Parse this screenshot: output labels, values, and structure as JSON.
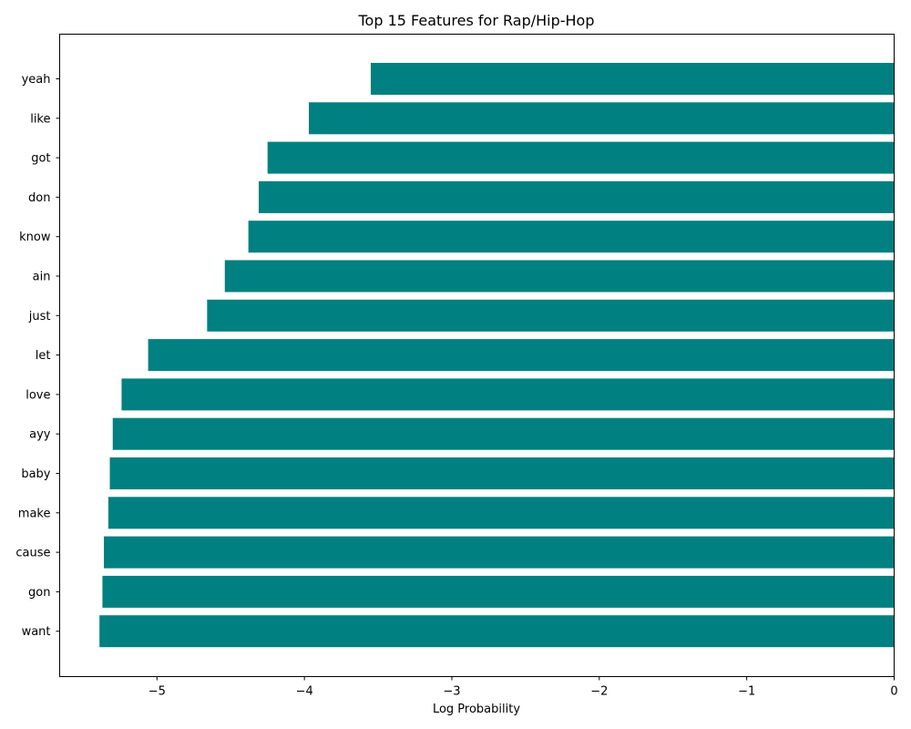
{
  "chart_data": {
    "type": "bar",
    "orientation": "horizontal",
    "title": "Top 15 Features for Rap/Hip-Hop",
    "xlabel": "Log Probability",
    "ylabel": "",
    "categories": [
      "yeah",
      "like",
      "got",
      "don",
      "know",
      "ain",
      "just",
      "let",
      "love",
      "ayy",
      "baby",
      "make",
      "cause",
      "gon",
      "want"
    ],
    "values": [
      -3.55,
      -3.97,
      -4.25,
      -4.31,
      -4.38,
      -4.54,
      -4.66,
      -5.06,
      -5.24,
      -5.3,
      -5.32,
      -5.33,
      -5.36,
      -5.37,
      -5.39
    ],
    "xlim": [
      -5.66,
      0
    ],
    "xticks": [
      -5,
      -4,
      -3,
      -2,
      -1,
      0
    ],
    "xtick_labels": [
      "−5",
      "−4",
      "−3",
      "−2",
      "−1",
      "0"
    ],
    "bar_color": "#008080",
    "grid": false,
    "legend": "none"
  }
}
